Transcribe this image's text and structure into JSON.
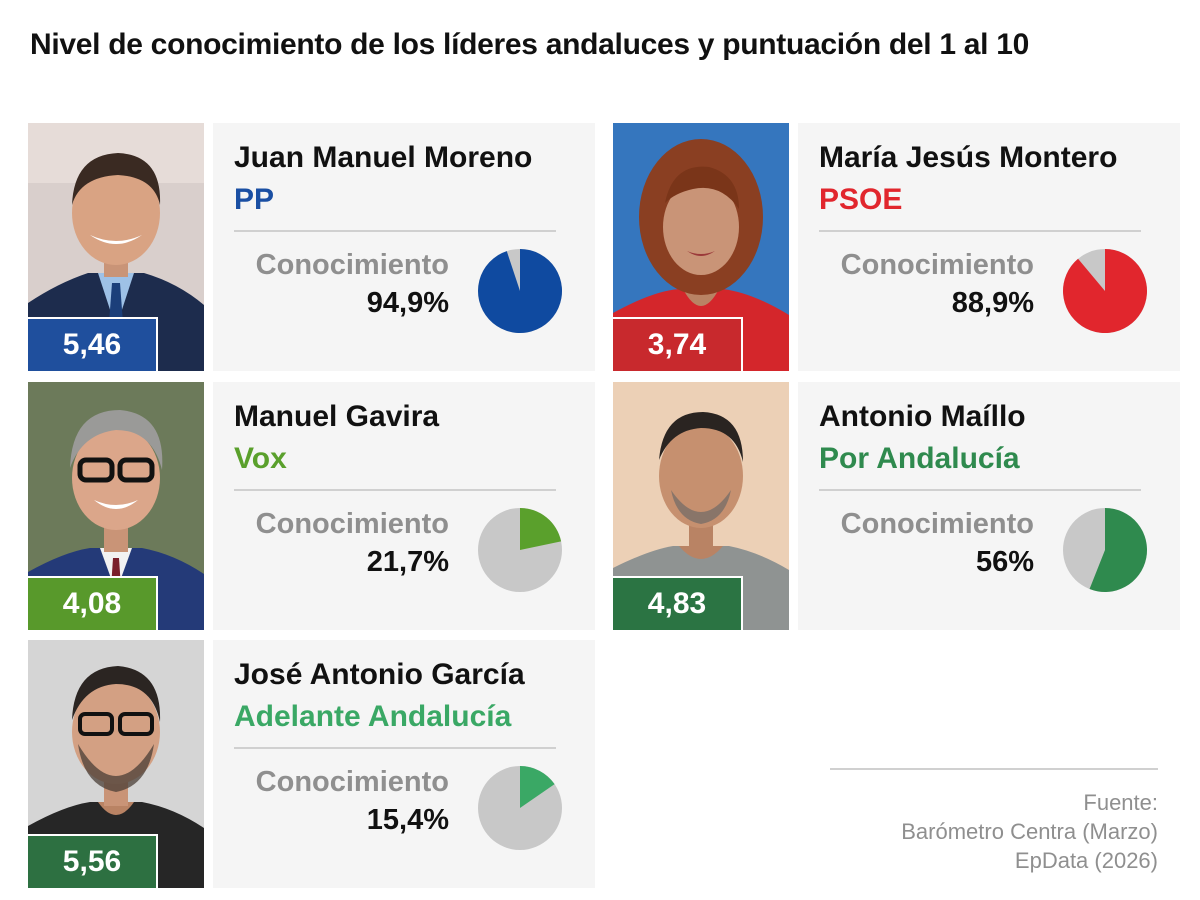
{
  "title": "Nivel de conocimiento de los líderes andaluces y puntuación del 1 al 10",
  "conocimiento_label": "Conocimiento",
  "source": {
    "line1": "Fuente:",
    "line2": "Barómetro Centra (Marzo)",
    "line3": "EpData (2026)"
  },
  "colors": {
    "pie_remainder": "#c8c8c8",
    "card_bg": "#f5f5f5"
  },
  "chart_data": {
    "type": "pie",
    "leaders": [
      {
        "name": "Juan Manuel Moreno",
        "party": "PP",
        "score": "5,46",
        "knowledge_label": "94,9%",
        "knowledge": 94.9,
        "party_color": "#1a4fa3",
        "pie_color": "#0f4aa0",
        "score_bg": "#1f4f9d"
      },
      {
        "name": "María Jesús Montero",
        "party": "PSOE",
        "score": "3,74",
        "knowledge_label": "88,9%",
        "knowledge": 88.9,
        "party_color": "#e1262d",
        "pie_color": "#e1262d",
        "score_bg": "#c8292d"
      },
      {
        "name": "Manuel Gavira",
        "party": "Vox",
        "score": "4,08",
        "knowledge_label": "21,7%",
        "knowledge": 21.7,
        "party_color": "#5aa02c",
        "pie_color": "#5aa02c",
        "score_bg": "#58992b"
      },
      {
        "name": "Antonio Maíllo",
        "party": "Por Andalucía",
        "score": "4,83",
        "knowledge_label": "56%",
        "knowledge": 56,
        "party_color": "#2f8a4e",
        "pie_color": "#2f8a4e",
        "score_bg": "#2b7443"
      },
      {
        "name": "José Antonio García",
        "party": "Adelante Andalucía",
        "score": "5,56",
        "knowledge_label": "15,4%",
        "knowledge": 15.4,
        "party_color": "#3aa865",
        "pie_color": "#3aa865",
        "score_bg": "#2d7041"
      }
    ]
  }
}
